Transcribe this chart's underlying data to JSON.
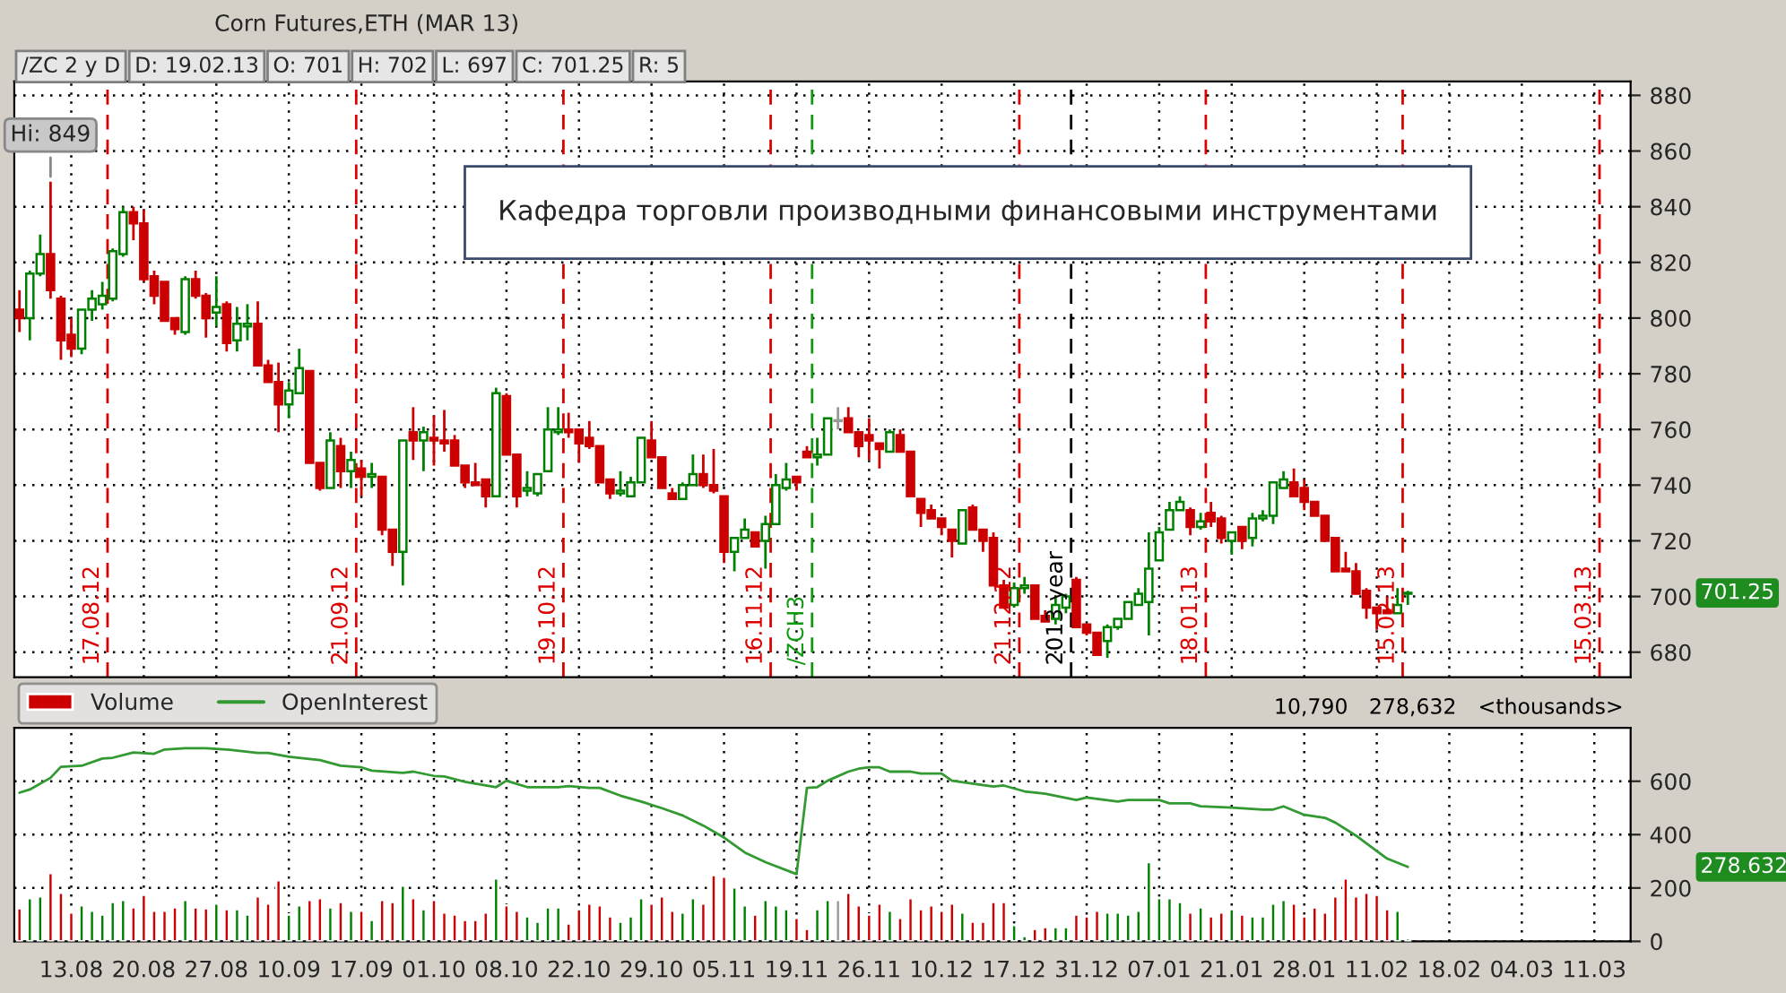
{
  "chart_data": [
    {
      "type": "candlestick",
      "title": "Corn Futures,ETH (MAR 13)",
      "subtitle": "/ZC 2 y D",
      "categories": [
        null,
        null,
        null,
        null,
        null,
        "13.08",
        null,
        null,
        null,
        null,
        null,
        null,
        "20.08",
        null,
        null,
        null,
        null,
        null,
        null,
        "27.08",
        null,
        null,
        null,
        null,
        null,
        null,
        "10.09",
        null,
        null,
        null,
        null,
        null,
        null,
        "17.09",
        null,
        null,
        null,
        null,
        null,
        null,
        "01.10",
        null,
        null,
        null,
        null,
        null,
        null,
        "08.10",
        null,
        null,
        null,
        null,
        null,
        null,
        "22.10",
        null,
        null,
        null,
        null,
        null,
        null,
        "29.10",
        null,
        null,
        null,
        null,
        null,
        null,
        "05.11",
        null,
        null,
        null,
        null,
        null,
        null,
        "19.11",
        null,
        null,
        null,
        null,
        null,
        null,
        "26.11",
        null,
        null,
        null,
        null,
        null,
        null,
        "10.12",
        null,
        null,
        null,
        null,
        null,
        null,
        "17.12",
        null,
        null,
        null,
        null,
        null,
        null,
        "31.12",
        null,
        null,
        null,
        null,
        null,
        null,
        "07.01",
        null,
        null,
        null,
        null,
        null,
        null,
        "21.01",
        null,
        null,
        null,
        null,
        null,
        null,
        "28.01",
        null,
        null,
        null,
        null,
        null,
        null,
        "11.02",
        null,
        null,
        null,
        null,
        null,
        null,
        "18.02",
        null,
        null,
        null,
        null,
        null,
        null,
        "04.03",
        null,
        null,
        null,
        null,
        null,
        null,
        "11.03",
        null,
        null,
        null
      ],
      "ohlc": [
        [
          803,
          810,
          795,
          800
        ],
        [
          800,
          817,
          792,
          816
        ],
        [
          816,
          830,
          815,
          823
        ],
        [
          823,
          849,
          807,
          810
        ],
        [
          807,
          808,
          785,
          792
        ],
        [
          794,
          800,
          786,
          789
        ],
        [
          789,
          803,
          787,
          803
        ],
        [
          803,
          810,
          799,
          807
        ],
        [
          805,
          813,
          803,
          808
        ],
        [
          807,
          825,
          806,
          824
        ],
        [
          823,
          840,
          822,
          838
        ],
        [
          838,
          840,
          828,
          834
        ],
        [
          834,
          839,
          813,
          814
        ],
        [
          815,
          817,
          805,
          808
        ],
        [
          813,
          813,
          799,
          799
        ],
        [
          800,
          800,
          794,
          796
        ],
        [
          795,
          815,
          794,
          814
        ],
        [
          814,
          817,
          807,
          808
        ],
        [
          808,
          809,
          793,
          800
        ],
        [
          802,
          815,
          797,
          804
        ],
        [
          805,
          806,
          788,
          791
        ],
        [
          792,
          804,
          788,
          798
        ],
        [
          797,
          805,
          792,
          798
        ],
        [
          798,
          806,
          783,
          783
        ],
        [
          783,
          785,
          777,
          777
        ],
        [
          777,
          784,
          759,
          769
        ],
        [
          769,
          777,
          764,
          774
        ],
        [
          773,
          789,
          773,
          782
        ],
        [
          781,
          781,
          748,
          748
        ],
        [
          748,
          748,
          738,
          739
        ],
        [
          739,
          759,
          739,
          756
        ],
        [
          754,
          757,
          739,
          745
        ],
        [
          745,
          752,
          739,
          749
        ],
        [
          746,
          749,
          736,
          743
        ],
        [
          743,
          748,
          739,
          744
        ],
        [
          743,
          743,
          722,
          724
        ],
        [
          724,
          724,
          711,
          716
        ],
        [
          716,
          756,
          704,
          756
        ],
        [
          759,
          768,
          749,
          756
        ],
        [
          756,
          761,
          745,
          759
        ],
        [
          757,
          765,
          747,
          756
        ],
        [
          756,
          767,
          752,
          755
        ],
        [
          756,
          758,
          747,
          747
        ],
        [
          747,
          747,
          739,
          741
        ],
        [
          741,
          748,
          740,
          740
        ],
        [
          742,
          742,
          732,
          736
        ],
        [
          736,
          775,
          736,
          773
        ],
        [
          772,
          773,
          751,
          751
        ],
        [
          751,
          751,
          732,
          736
        ],
        [
          738,
          745,
          736,
          739
        ],
        [
          737,
          744,
          736,
          744
        ],
        [
          745,
          768,
          745,
          760
        ],
        [
          759,
          768,
          758,
          760
        ],
        [
          760,
          766,
          757,
          759
        ],
        [
          760,
          760,
          748,
          755
        ],
        [
          757,
          763,
          753,
          754
        ],
        [
          754,
          754,
          741,
          741
        ],
        [
          742,
          742,
          735,
          737
        ],
        [
          737,
          745,
          736,
          738
        ],
        [
          736,
          743,
          736,
          741
        ],
        [
          741,
          757,
          741,
          757
        ],
        [
          756,
          763,
          750,
          750
        ],
        [
          750,
          750,
          739,
          739
        ],
        [
          737,
          739,
          735,
          735
        ],
        [
          735,
          741,
          735,
          740
        ],
        [
          740,
          751,
          740,
          744
        ],
        [
          744,
          751,
          739,
          740
        ],
        [
          740,
          753,
          737,
          738
        ],
        [
          736,
          736,
          712,
          716
        ],
        [
          716,
          721,
          709,
          721
        ],
        [
          721,
          728,
          721,
          724
        ],
        [
          723,
          723,
          718,
          718
        ],
        [
          720,
          729,
          710,
          726
        ],
        [
          726,
          744,
          726,
          740
        ],
        [
          739,
          748,
          738,
          742
        ],
        [
          743,
          743,
          738,
          741
        ],
        [
          752,
          754,
          750,
          750
        ],
        [
          750,
          757,
          747,
          751
        ],
        [
          751,
          764,
          751,
          764
        ],
        [
          763,
          768,
          760,
          763
        ],
        [
          764,
          768,
          759,
          759
        ],
        [
          759,
          759,
          750,
          754
        ],
        [
          758,
          764,
          749,
          756
        ],
        [
          755,
          755,
          746,
          753
        ],
        [
          752,
          760,
          752,
          759
        ],
        [
          758,
          760,
          752,
          752
        ],
        [
          752,
          752,
          736,
          736
        ],
        [
          735,
          735,
          725,
          730
        ],
        [
          731,
          733,
          728,
          728
        ],
        [
          728,
          728,
          722,
          725
        ],
        [
          724,
          724,
          714,
          720
        ],
        [
          719,
          731,
          719,
          731
        ],
        [
          732,
          733,
          724,
          724
        ],
        [
          724,
          724,
          716,
          720
        ],
        [
          721,
          723,
          704,
          704
        ],
        [
          704,
          706,
          696,
          696
        ],
        [
          697,
          705,
          696,
          703
        ],
        [
          703,
          707,
          701,
          704
        ],
        [
          704,
          704,
          692,
          692
        ],
        [
          693,
          695,
          691,
          691
        ],
        [
          692,
          700,
          690,
          697
        ],
        [
          696,
          701,
          694,
          700
        ],
        [
          706,
          707,
          689,
          689
        ],
        [
          690,
          690,
          686,
          687
        ],
        [
          687,
          687,
          679,
          679
        ],
        [
          684,
          690,
          678,
          689
        ],
        [
          689,
          692,
          688,
          692
        ],
        [
          692,
          698,
          692,
          698
        ],
        [
          697,
          703,
          697,
          701
        ],
        [
          698,
          723,
          686,
          710
        ],
        [
          713,
          725,
          713,
          723
        ],
        [
          724,
          734,
          724,
          731
        ],
        [
          731,
          736,
          731,
          734
        ],
        [
          731,
          732,
          722,
          725
        ],
        [
          725,
          730,
          724,
          727
        ],
        [
          730,
          734,
          725,
          727
        ],
        [
          728,
          729,
          719,
          721
        ],
        [
          720,
          723,
          715,
          723
        ],
        [
          725,
          725,
          717,
          720
        ],
        [
          721,
          730,
          718,
          728
        ],
        [
          728,
          731,
          727,
          729
        ],
        [
          729,
          741,
          726,
          741
        ],
        [
          739,
          745,
          739,
          742
        ],
        [
          741,
          746,
          736,
          736
        ],
        [
          739,
          742,
          731,
          734
        ],
        [
          734,
          734,
          729,
          729
        ],
        [
          729,
          729,
          720,
          720
        ],
        [
          721,
          721,
          709,
          709
        ],
        [
          710,
          716,
          709,
          709
        ],
        [
          709,
          712,
          701,
          701
        ],
        [
          702,
          703,
          692,
          696
        ],
        [
          696,
          696,
          688,
          694
        ],
        [
          695,
          700,
          694,
          694
        ],
        [
          694,
          703,
          694,
          697
        ],
        [
          701,
          702,
          697,
          701.25
        ],
        null,
        null,
        null,
        null,
        null,
        null,
        null,
        null,
        null,
        null,
        null,
        null,
        null,
        null,
        null,
        null,
        null,
        null,
        null,
        null,
        null
      ],
      "colors": [
        "#cc0000",
        "#008000",
        "#008000",
        "#cc0000",
        "#cc0000",
        "#cc0000",
        "#008000",
        "#008000",
        "#008000",
        "#008000",
        "#008000",
        "#cc0000",
        "#cc0000",
        "#cc0000",
        "#cc0000",
        "#cc0000",
        "#008000",
        "#cc0000",
        "#cc0000",
        "#008000",
        "#cc0000",
        "#008000",
        "#008000",
        "#cc0000",
        "#cc0000",
        "#cc0000",
        "#008000",
        "#008000",
        "#cc0000",
        "#cc0000",
        "#008000",
        "#cc0000",
        "#008000",
        "#cc0000",
        "#008000",
        "#cc0000",
        "#cc0000",
        "#008000",
        "#cc0000",
        "#008000",
        "#cc0000",
        "#cc0000",
        "#cc0000",
        "#cc0000",
        "#cc0000",
        "#cc0000",
        "#008000",
        "#cc0000",
        "#cc0000",
        "#008000",
        "#008000",
        "#008000",
        "#008000",
        "#cc0000",
        "#cc0000",
        "#cc0000",
        "#cc0000",
        "#cc0000",
        "#008000",
        "#008000",
        "#008000",
        "#cc0000",
        "#cc0000",
        "#cc0000",
        "#008000",
        "#008000",
        "#cc0000",
        "#cc0000",
        "#cc0000",
        "#008000",
        "#008000",
        "#cc0000",
        "#008000",
        "#008000",
        "#008000",
        "#cc0000",
        "#cc0000",
        "#008000",
        "#008000",
        "#999999",
        "#cc0000",
        "#cc0000",
        "#cc0000",
        "#cc0000",
        "#008000",
        "#cc0000",
        "#cc0000",
        "#cc0000",
        "#cc0000",
        "#cc0000",
        "#cc0000",
        "#008000",
        "#cc0000",
        "#cc0000",
        "#cc0000",
        "#cc0000",
        "#008000",
        "#008000",
        "#cc0000",
        "#cc0000",
        "#008000",
        "#008000",
        "#cc0000",
        "#cc0000",
        "#cc0000",
        "#008000",
        "#008000",
        "#008000",
        "#008000",
        "#008000",
        "#008000",
        "#008000",
        "#008000",
        "#cc0000",
        "#008000",
        "#cc0000",
        "#cc0000",
        "#008000",
        "#cc0000",
        "#008000",
        "#008000",
        "#008000",
        "#008000",
        "#cc0000",
        "#cc0000",
        "#cc0000",
        "#cc0000",
        "#cc0000",
        "#cc0000",
        "#cc0000",
        "#cc0000",
        "#cc0000",
        "#cc0000",
        "#008000",
        "#008000",
        null,
        null,
        null,
        null,
        null,
        null,
        null,
        null,
        null,
        null,
        null,
        null,
        null,
        null,
        null,
        null,
        null,
        null,
        null,
        null,
        null
      ],
      "ylim": [
        671,
        885
      ],
      "yticks": [
        680,
        700,
        720,
        740,
        760,
        780,
        800,
        820,
        840,
        860,
        880
      ],
      "grid": true,
      "tick_labels": "y",
      "annotations": [
        "17.08.12",
        "21.09.12",
        "19.10.12",
        "16.11.12",
        "/ZCH3",
        "21.12.12",
        "2013 year",
        "18.01.13",
        "15.02.13",
        "15.03.13",
        "D: 19.02.13",
        "O: 701",
        "H: 702",
        "L: 697",
        "C: 701.25",
        "R: 5",
        "Кафедра торговли производными финансовыми инструментами",
        {
          "text": "Hi: 849",
          "y": 849
        },
        "701.25"
      ]
    },
    {
      "type": "bar",
      "categories": [
        null,
        null,
        null,
        null,
        null,
        "13.08",
        null,
        null,
        null,
        null,
        null,
        null,
        "20.08",
        null,
        null,
        null,
        null,
        null,
        null,
        "27.08",
        null,
        null,
        null,
        null,
        null,
        null,
        "10.09",
        null,
        null,
        null,
        null,
        null,
        null,
        "17.09",
        null,
        null,
        null,
        null,
        null,
        null,
        "01.10",
        null,
        null,
        null,
        null,
        null,
        null,
        "08.10",
        null,
        null,
        null,
        null,
        null,
        null,
        "22.10",
        null,
        null,
        null,
        null,
        null,
        null,
        "29.10",
        null,
        null,
        null,
        null,
        null,
        null,
        "05.11",
        null,
        null,
        null,
        null,
        null,
        null,
        "19.11",
        null,
        null,
        null,
        null,
        null,
        null,
        "26.11",
        null,
        null,
        null,
        null,
        null,
        null,
        "10.12",
        null,
        null,
        null,
        null,
        null,
        null,
        "17.12",
        null,
        null,
        null,
        null,
        null,
        null,
        "31.12",
        null,
        null,
        null,
        null,
        null,
        null,
        "07.01",
        null,
        null,
        null,
        null,
        null,
        null,
        "21.01",
        null,
        null,
        null,
        null,
        null,
        null,
        "28.01",
        null,
        null,
        null,
        null,
        null,
        null,
        "11.02",
        null,
        null,
        null,
        null,
        null,
        null,
        "18.02",
        null,
        null,
        null,
        null,
        null,
        null,
        "04.03",
        null,
        null,
        null,
        null,
        null,
        null,
        "11.03",
        null,
        null,
        null
      ],
      "series": [
        {
          "name": "Volume",
          "type": "bar",
          "values": [
            124,
            162,
            169,
            256,
            182,
            108,
            135,
            115,
            101,
            148,
            155,
            128,
            175,
            115,
            115,
            128,
            155,
            128,
            124,
            142,
            121,
            121,
            101,
            169,
            142,
            229,
            101,
            135,
            155,
            162,
            128,
            148,
            115,
            115,
            81,
            155,
            148,
            209,
            162,
            121,
            155,
            108,
            101,
            81,
            81,
            108,
            236,
            135,
            115,
            94,
            74,
            128,
            128,
            67,
            121,
            142,
            135,
            94,
            74,
            94,
            162,
            142,
            169,
            115,
            108,
            162,
            142,
            249,
            243,
            202,
            135,
            101,
            155,
            135,
            121,
            88,
            47,
            121,
            155,
            155,
            182,
            135,
            101,
            142,
            115,
            88,
            162,
            121,
            135,
            115,
            142,
            108,
            74,
            74,
            148,
            148,
            61,
            20,
            47,
            54,
            54,
            54,
            101,
            94,
            115,
            108,
            108,
            101,
            115,
            297,
            162,
            162,
            148,
            108,
            128,
            94,
            108,
            121,
            101,
            94,
            94,
            142,
            155,
            142,
            94,
            128,
            108,
            169,
            236,
            169,
            182,
            175,
            121,
            115,
            11,
            null,
            null,
            null,
            null,
            null,
            null,
            null,
            null,
            null,
            null,
            null,
            null,
            null,
            null,
            null,
            null,
            null,
            null,
            null,
            null,
            null
          ],
          "colors": [
            "#cc0000",
            "#008000",
            "#008000",
            "#cc0000",
            "#cc0000",
            "#cc0000",
            "#008000",
            "#008000",
            "#008000",
            "#008000",
            "#008000",
            "#cc0000",
            "#cc0000",
            "#cc0000",
            "#cc0000",
            "#cc0000",
            "#008000",
            "#cc0000",
            "#cc0000",
            "#008000",
            "#cc0000",
            "#008000",
            "#008000",
            "#cc0000",
            "#cc0000",
            "#cc0000",
            "#008000",
            "#008000",
            "#cc0000",
            "#cc0000",
            "#008000",
            "#cc0000",
            "#008000",
            "#cc0000",
            "#008000",
            "#cc0000",
            "#cc0000",
            "#008000",
            "#cc0000",
            "#008000",
            "#cc0000",
            "#cc0000",
            "#cc0000",
            "#cc0000",
            "#cc0000",
            "#cc0000",
            "#008000",
            "#cc0000",
            "#cc0000",
            "#008000",
            "#008000",
            "#008000",
            "#008000",
            "#cc0000",
            "#cc0000",
            "#cc0000",
            "#cc0000",
            "#cc0000",
            "#008000",
            "#008000",
            "#008000",
            "#cc0000",
            "#cc0000",
            "#cc0000",
            "#008000",
            "#008000",
            "#cc0000",
            "#cc0000",
            "#cc0000",
            "#008000",
            "#008000",
            "#cc0000",
            "#008000",
            "#008000",
            "#008000",
            "#cc0000",
            "#cc0000",
            "#008000",
            "#008000",
            "#999999",
            "#cc0000",
            "#cc0000",
            "#cc0000",
            "#cc0000",
            "#008000",
            "#cc0000",
            "#cc0000",
            "#cc0000",
            "#cc0000",
            "#cc0000",
            "#cc0000",
            "#008000",
            "#cc0000",
            "#cc0000",
            "#cc0000",
            "#cc0000",
            "#008000",
            "#008000",
            "#cc0000",
            "#cc0000",
            "#008000",
            "#008000",
            "#cc0000",
            "#cc0000",
            "#cc0000",
            "#008000",
            "#008000",
            "#008000",
            "#008000",
            "#008000",
            "#008000",
            "#008000",
            "#008000",
            "#cc0000",
            "#008000",
            "#cc0000",
            "#cc0000",
            "#008000",
            "#cc0000",
            "#008000",
            "#008000",
            "#008000",
            "#008000",
            "#cc0000",
            "#cc0000",
            "#cc0000",
            "#cc0000",
            "#cc0000",
            "#cc0000",
            "#cc0000",
            "#cc0000",
            "#cc0000",
            "#cc0000",
            "#008000",
            "#008000",
            null,
            null,
            null,
            null,
            null,
            null,
            null,
            null,
            null,
            null,
            null,
            null,
            null,
            null,
            null,
            null,
            null,
            null,
            null,
            null,
            null
          ]
        },
        {
          "name": "OpenInterest",
          "type": "line",
          "color": "#339933",
          "values": [
            557,
            569,
            null,
            613,
            654,
            null,
            658,
            null,
            685,
            688,
            null,
            708,
            null,
            703,
            719,
            null,
            724,
            null,
            724,
            null,
            719,
            null,
            null,
            706,
            706,
            null,
            692,
            null,
            null,
            679,
            null,
            658,
            null,
            652,
            640,
            null,
            null,
            631,
            636,
            null,
            620,
            618,
            null,
            598,
            null,
            null,
            578,
            602,
            null,
            578,
            null,
            null,
            578,
            582,
            null,
            575,
            575,
            null,
            546,
            null,
            524,
            null,
            499,
            null,
            472,
            null,
            434,
            null,
            389,
            null,
            333,
            null,
            297,
            null,
            null,
            252,
            575,
            578,
            602,
            null,
            636,
            647,
            652,
            652,
            636,
            null,
            636,
            629,
            null,
            629,
            602,
            null,
            591,
            null,
            580,
            584,
            null,
            562,
            null,
            553,
            null,
            null,
            530,
            539,
            null,
            null,
            524,
            530,
            null,
            null,
            530,
            517,
            null,
            517,
            506,
            null,
            null,
            501,
            null,
            null,
            494,
            494,
            506,
            null,
            474,
            null,
            463,
            445,
            null,
            396,
            null,
            null,
            310,
            null,
            279,
            null,
            null,
            null,
            null,
            null,
            null,
            null,
            null,
            null,
            null,
            null,
            null,
            null,
            null,
            null,
            null,
            null,
            null,
            null,
            null,
            null
          ]
        }
      ],
      "ylim": [
        0,
        800
      ],
      "yticks": [
        0,
        200,
        400,
        600
      ],
      "grid": true,
      "legend": "top left",
      "annotations": [
        "10,790",
        "278,632",
        "<thousands>",
        "278.632"
      ]
    }
  ]
}
